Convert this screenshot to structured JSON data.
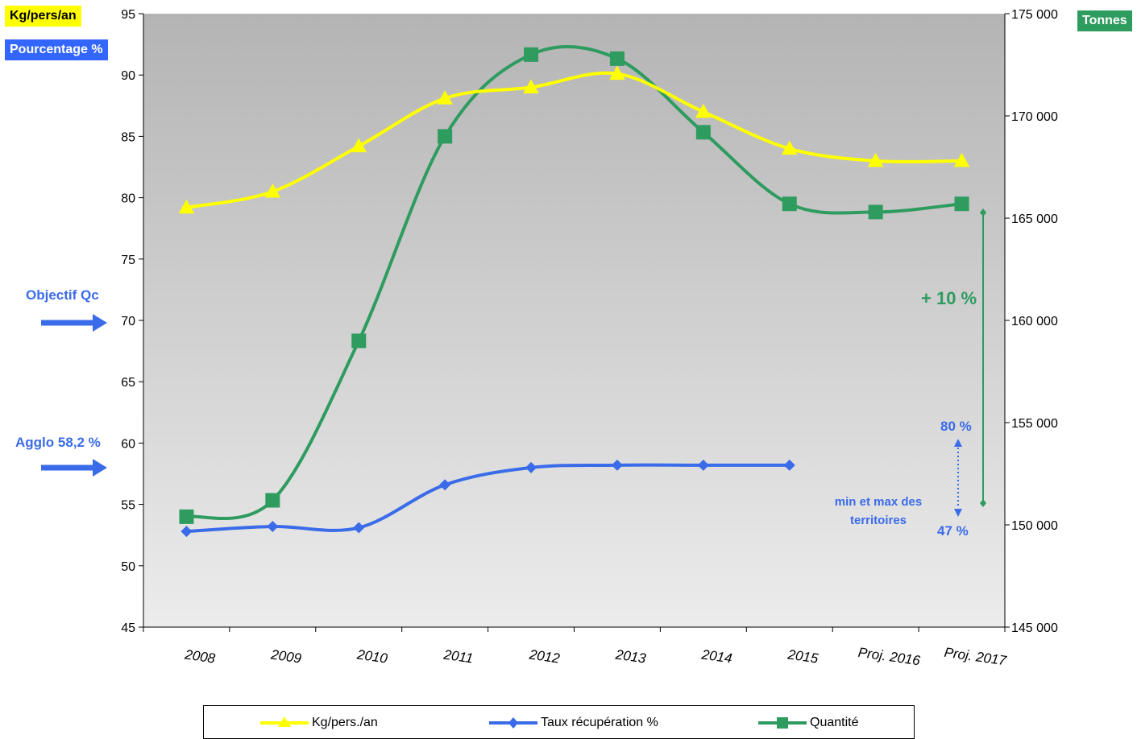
{
  "chart_data": {
    "type": "line",
    "categories": [
      "2008",
      "2009",
      "2010",
      "2011",
      "2012",
      "2013",
      "2014",
      "2015",
      "Proj. 2016",
      "Proj. 2017"
    ],
    "left_axis": {
      "label": "Kg/pers/an",
      "label2": "Pourcentage %",
      "ylim": [
        45,
        95
      ],
      "ticks": [
        45,
        50,
        55,
        60,
        65,
        70,
        75,
        80,
        85,
        90,
        95
      ]
    },
    "right_axis": {
      "label": "Tonnes",
      "ylim": [
        145000,
        175000
      ],
      "ticks": [
        "145 000",
        "150 000",
        "155 000",
        "160 000",
        "165 000",
        "170 000",
        "175 000"
      ],
      "tick_values": [
        145000,
        150000,
        155000,
        160000,
        165000,
        170000,
        175000
      ]
    },
    "series": [
      {
        "name": "Kg/pers./an",
        "axis": "left",
        "color": "#ffff00",
        "marker": "triangle",
        "values": [
          79.2,
          80.5,
          84.2,
          88.1,
          89.0,
          90.1,
          87.0,
          84.0,
          83.0,
          83.0
        ]
      },
      {
        "name": "Taux récupération %",
        "axis": "left",
        "color": "#3a6be8",
        "marker": "diamond",
        "values": [
          52.8,
          53.2,
          53.1,
          56.6,
          58.0,
          58.2,
          58.2,
          58.2,
          null,
          null
        ]
      },
      {
        "name": "Quantité",
        "axis": "right",
        "color": "#2e9b5f",
        "marker": "square",
        "values": [
          150400,
          151200,
          159000,
          169000,
          173000,
          172800,
          169200,
          165700,
          165300,
          165700
        ]
      }
    ],
    "grid": false,
    "legend_position": "bottom",
    "annotations": {
      "objectif": "Objectif Qc",
      "agglo": "Agglo 58,2 %",
      "plus10": "+ 10 %",
      "pct80": "80 %",
      "pct47": "47 %",
      "minmax": "min et max des territoires"
    }
  }
}
